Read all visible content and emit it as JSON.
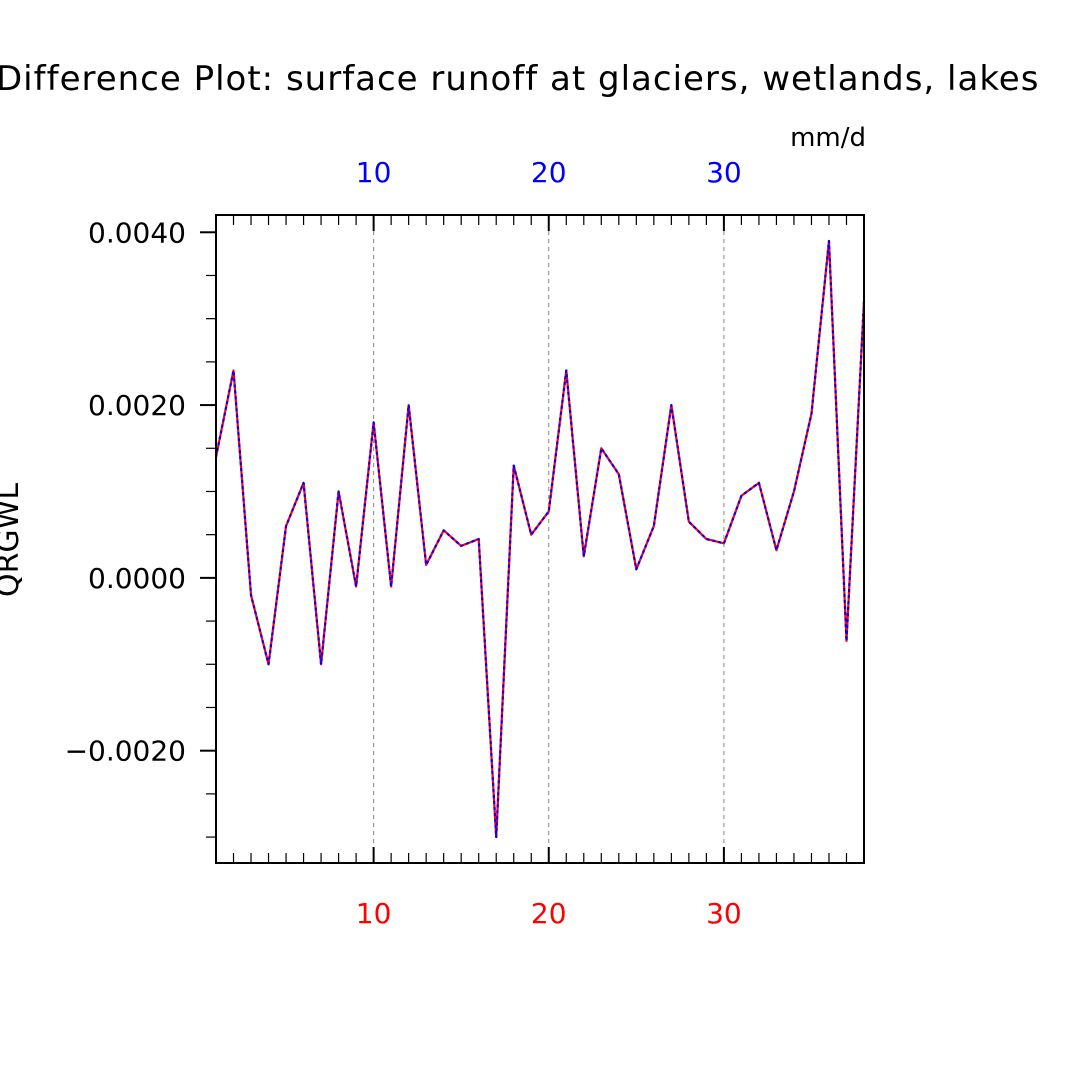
{
  "chart_data": {
    "type": "line",
    "title": "Difference Plot: surface runoff at glaciers, wetlands, lakes",
    "units": "mm/d",
    "ylabel": "QRGWL",
    "xlim": [
      1,
      38
    ],
    "ylim": [
      -0.0033,
      0.0042
    ],
    "y_ticks": [
      {
        "value": 0.004,
        "label": "0.0040"
      },
      {
        "value": 0.002,
        "label": "0.0020"
      },
      {
        "value": 0.0,
        "label": "0.0000"
      },
      {
        "value": -0.002,
        "label": "−0.0020"
      }
    ],
    "x_ticks_bottom": [
      {
        "value": 10,
        "label": "10"
      },
      {
        "value": 20,
        "label": "20"
      },
      {
        "value": 30,
        "label": "30"
      }
    ],
    "x_ticks_top": [
      {
        "value": 10,
        "label": "10"
      },
      {
        "value": 20,
        "label": "20"
      },
      {
        "value": 30,
        "label": "30"
      }
    ],
    "grid": "vertical dashed at labeled x ticks",
    "colors": {
      "series_a": "#ff0000",
      "series_b": "#0000ff",
      "top_axis": "#0000ff",
      "bottom_axis": "#ff0000"
    },
    "x": [
      1,
      2,
      3,
      4,
      5,
      6,
      7,
      8,
      9,
      10,
      11,
      12,
      13,
      14,
      15,
      16,
      17,
      18,
      19,
      20,
      21,
      22,
      23,
      24,
      25,
      26,
      27,
      28,
      29,
      30,
      31,
      32,
      33,
      34,
      35,
      36,
      37,
      38
    ],
    "series": [
      {
        "values": [
          0.0014,
          0.0024,
          -0.0002,
          -0.001,
          0.0006,
          0.0011,
          -0.001,
          0.001,
          -0.0001,
          0.0018,
          -0.0001,
          0.002,
          0.00015,
          0.00055,
          0.00037,
          0.00045,
          -0.003,
          0.0013,
          0.0005,
          0.00077,
          0.0024,
          0.00025,
          0.0015,
          0.0012,
          0.0001,
          0.0006,
          0.002,
          0.00065,
          0.00045,
          0.0004,
          0.00095,
          0.0011,
          0.00032,
          0.001,
          0.0019,
          0.0039,
          -0.00073,
          0.0032
        ]
      },
      {
        "values": [
          0.0014,
          0.0024,
          -0.0002,
          -0.001,
          0.0006,
          0.0011,
          -0.001,
          0.001,
          -0.0001,
          0.0018,
          -0.0001,
          0.002,
          0.00015,
          0.00055,
          0.00037,
          0.00045,
          -0.003,
          0.0013,
          0.0005,
          0.00077,
          0.0024,
          0.00025,
          0.0015,
          0.0012,
          0.0001,
          0.0006,
          0.002,
          0.00065,
          0.00045,
          0.0004,
          0.00095,
          0.0011,
          0.00032,
          0.001,
          0.0019,
          0.0039,
          -0.00073,
          0.0032
        ]
      }
    ]
  }
}
